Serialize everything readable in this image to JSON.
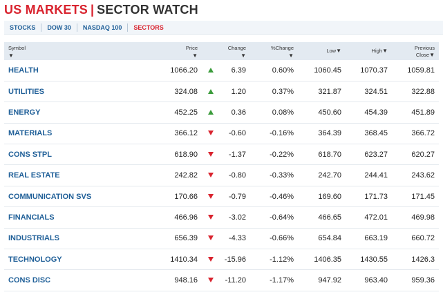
{
  "header": {
    "title_main": "US MARKETS",
    "title_sep": "|",
    "title_sub": "SECTOR WATCH"
  },
  "tabs": [
    {
      "label": "STOCKS",
      "active": false
    },
    {
      "label": "DOW 30",
      "active": false
    },
    {
      "label": "NASDAQ 100",
      "active": false
    },
    {
      "label": "SECTORS",
      "active": true
    }
  ],
  "table": {
    "columns": {
      "symbol": "Symbol",
      "price": "Price",
      "change": "Change",
      "pct_change": "%Change",
      "low": "Low",
      "high": "High",
      "previous": "Previous",
      "close": "Close"
    },
    "sort_arrow": "▼",
    "rows": [
      {
        "symbol": "HEALTH",
        "price": "1066.20",
        "dir": "up",
        "change": "6.39",
        "pct": "0.60%",
        "low": "1060.45",
        "high": "1070.37",
        "prev": "1059.81"
      },
      {
        "symbol": "UTILITIES",
        "price": "324.08",
        "dir": "up",
        "change": "1.20",
        "pct": "0.37%",
        "low": "321.87",
        "high": "324.51",
        "prev": "322.88"
      },
      {
        "symbol": "ENERGY",
        "price": "452.25",
        "dir": "up",
        "change": "0.36",
        "pct": "0.08%",
        "low": "450.60",
        "high": "454.39",
        "prev": "451.89"
      },
      {
        "symbol": "MATERIALS",
        "price": "366.12",
        "dir": "down",
        "change": "-0.60",
        "pct": "-0.16%",
        "low": "364.39",
        "high": "368.45",
        "prev": "366.72"
      },
      {
        "symbol": "CONS STPL",
        "price": "618.90",
        "dir": "down",
        "change": "-1.37",
        "pct": "-0.22%",
        "low": "618.70",
        "high": "623.27",
        "prev": "620.27"
      },
      {
        "symbol": "REAL ESTATE",
        "price": "242.82",
        "dir": "down",
        "change": "-0.80",
        "pct": "-0.33%",
        "low": "242.70",
        "high": "244.41",
        "prev": "243.62"
      },
      {
        "symbol": "COMMUNICATION SVS",
        "price": "170.66",
        "dir": "down",
        "change": "-0.79",
        "pct": "-0.46%",
        "low": "169.60",
        "high": "171.73",
        "prev": "171.45"
      },
      {
        "symbol": "FINANCIALS",
        "price": "466.96",
        "dir": "down",
        "change": "-3.02",
        "pct": "-0.64%",
        "low": "466.65",
        "high": "472.01",
        "prev": "469.98"
      },
      {
        "symbol": "INDUSTRIALS",
        "price": "656.39",
        "dir": "down",
        "change": "-4.33",
        "pct": "-0.66%",
        "low": "654.84",
        "high": "663.19",
        "prev": "660.72"
      },
      {
        "symbol": "TECHNOLOGY",
        "price": "1410.34",
        "dir": "down",
        "change": "-15.96",
        "pct": "-1.12%",
        "low": "1406.35",
        "high": "1430.55",
        "prev": "1426.3"
      },
      {
        "symbol": "CONS DISC",
        "price": "948.16",
        "dir": "down",
        "change": "-11.20",
        "pct": "-1.17%",
        "low": "947.92",
        "high": "963.40",
        "prev": "959.36"
      }
    ]
  },
  "colors": {
    "brand_red": "#d9232e",
    "link_blue": "#1f5f98",
    "up_green": "#3a9b3a",
    "down_red": "#d9232e",
    "header_bg": "#e3eaf1"
  }
}
